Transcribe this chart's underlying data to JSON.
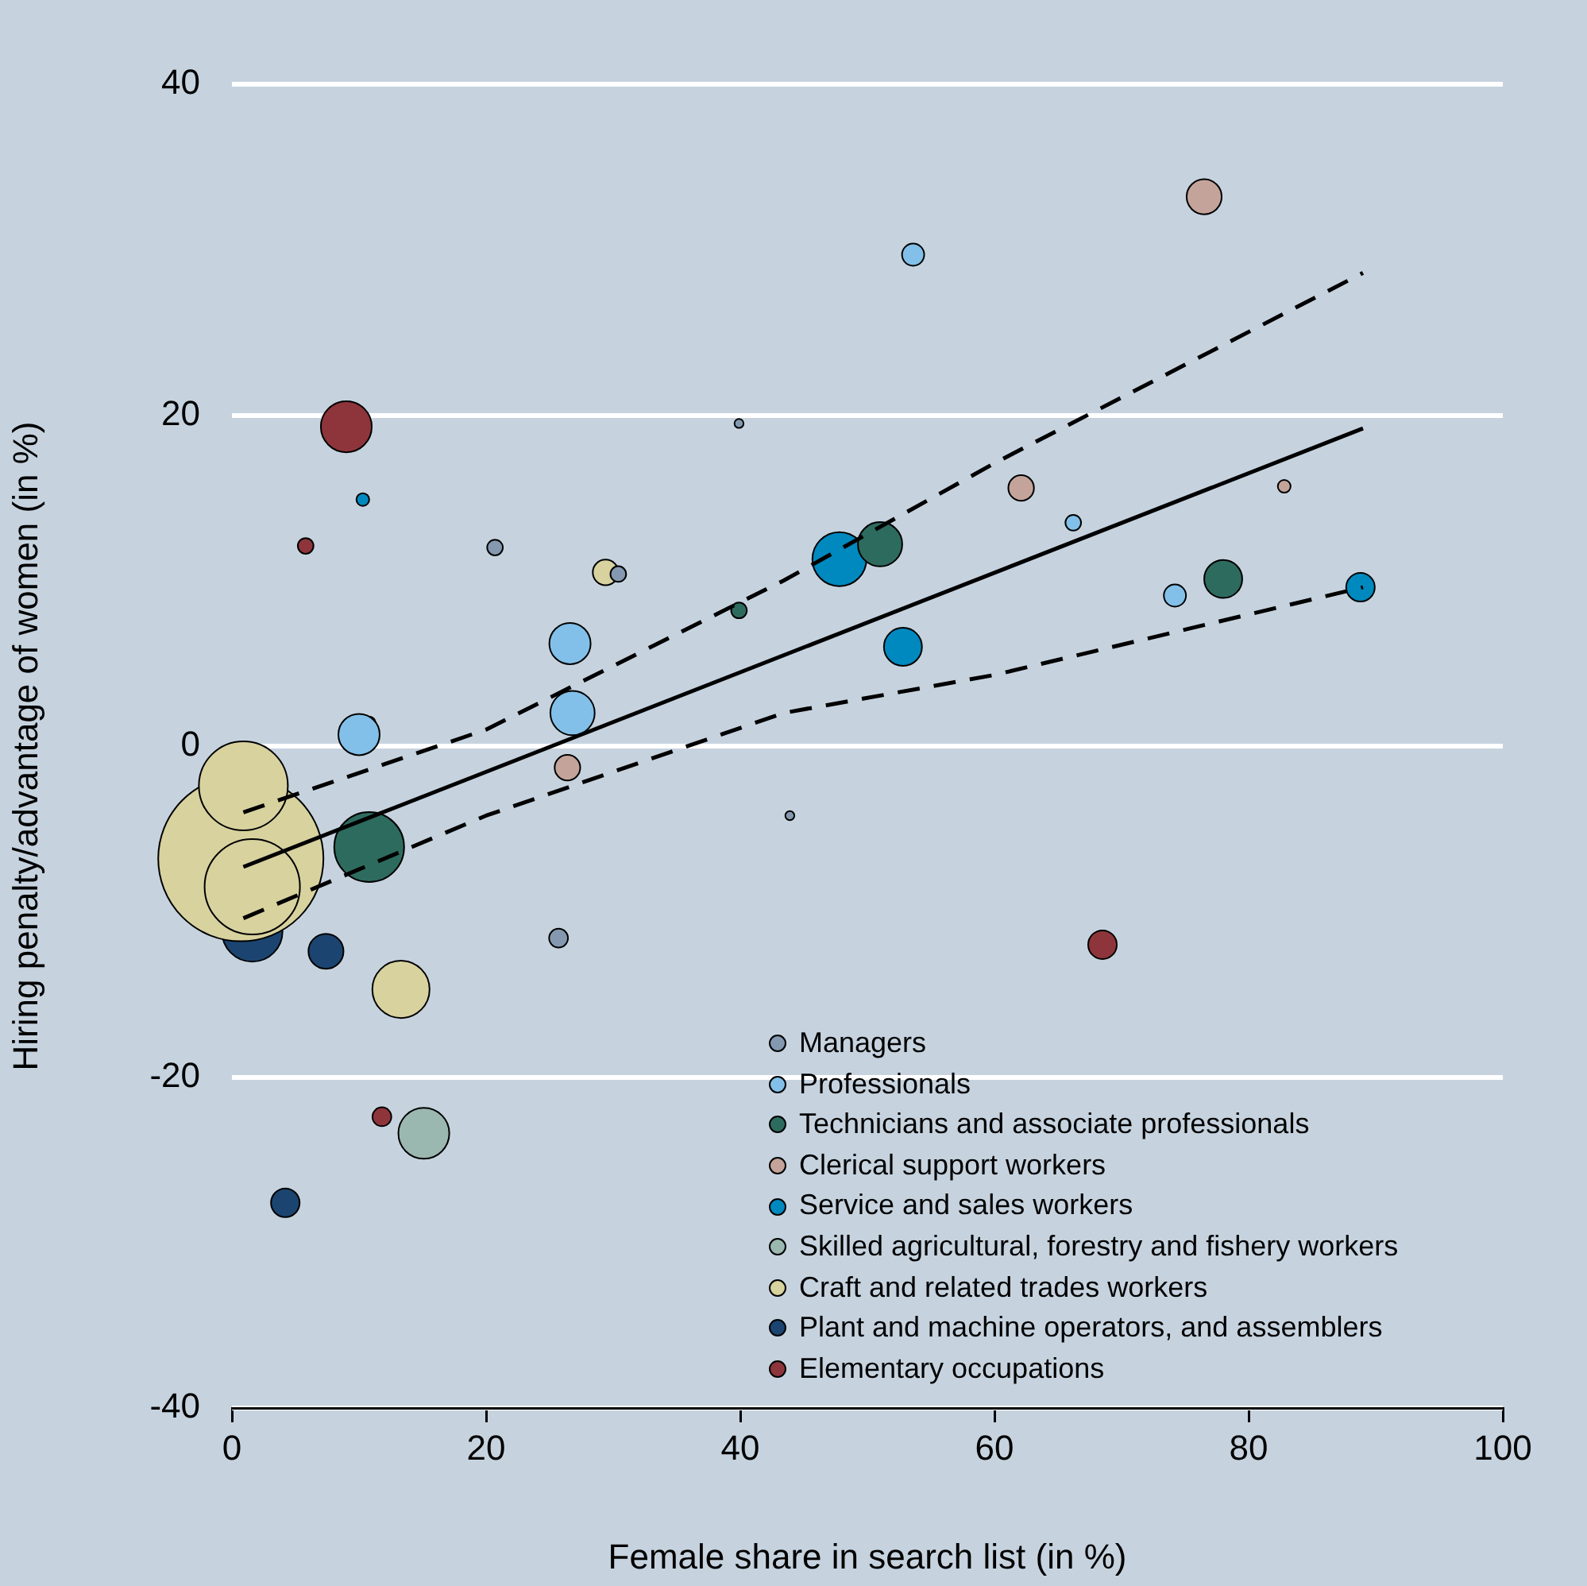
{
  "chart_data": {
    "type": "bubble",
    "xlabel": "Female share in search list (in %)",
    "ylabel": "Hiring penalty/advantage of women (in %)",
    "xlim": [
      0,
      100
    ],
    "xticks": [
      0,
      20,
      40,
      60,
      80,
      100
    ],
    "ylim": [
      -40,
      40
    ],
    "yticks": [
      -40,
      -20,
      0,
      20,
      40
    ],
    "grid": "y",
    "legend": "bottom right",
    "series": [
      {
        "name": "Managers",
        "color": "#8499b0",
        "x": [
          20.7,
          25.7,
          43.9,
          30.4,
          39.9
        ],
        "values": [
          12.0,
          -11.6,
          -4.2,
          10.4,
          19.5
        ],
        "sizes": [
          0.009,
          0.013,
          0.003,
          0.009,
          0.003
        ]
      },
      {
        "name": "Professionals",
        "color": "#82c0e9",
        "x": [
          53.6,
          26.6,
          26.8,
          10.0,
          66.2,
          74.2
        ],
        "values": [
          29.7,
          6.2,
          2.0,
          0.7,
          13.5,
          9.1
        ],
        "sizes": [
          0.018,
          0.0625,
          0.072,
          0.0625,
          0.009,
          0.018
        ]
      },
      {
        "name": "Technicians and associate professionals",
        "color": "#2e6b5f",
        "x": [
          51.0,
          78.0,
          10.8,
          39.9,
          10.8
        ],
        "values": [
          12.2,
          10.1,
          -6.1,
          8.2,
          1.4
        ],
        "sizes": [
          0.072,
          0.053,
          0.179,
          0.009,
          0.006
        ]
      },
      {
        "name": "Clerical support workers",
        "color": "#c4a49a",
        "x": [
          76.5,
          62.1,
          82.8,
          26.4
        ],
        "values": [
          33.2,
          15.6,
          15.7,
          -1.3
        ],
        "sizes": [
          0.045,
          0.024,
          0.006,
          0.024
        ]
      },
      {
        "name": "Service and sales workers",
        "color": "#0089bf",
        "x": [
          47.8,
          52.8,
          88.8,
          10.3
        ],
        "values": [
          11.3,
          6.0,
          9.6,
          14.9
        ],
        "sizes": [
          0.107,
          0.053,
          0.03,
          0.006
        ]
      },
      {
        "name": "Skilled agricultural, forestry and fishery workers",
        "color": "#9bb8b0",
        "x": [
          15.1
        ],
        "values": [
          -23.4
        ],
        "sizes": [
          0.095
        ]
      },
      {
        "name": "Craft and related trades workers",
        "color": "#d8d29f",
        "x": [
          0.7,
          0.9,
          1.6,
          13.3,
          29.4
        ],
        "values": [
          -6.8,
          -2.4,
          -8.5,
          -14.7,
          10.5
        ],
        "sizes": [
          1,
          0.29,
          0.333,
          0.12,
          0.024
        ]
      },
      {
        "name": "Plant and machine operators, and assemblers",
        "color": "#1b4570",
        "x": [
          1.6,
          7.4,
          4.2
        ],
        "values": [
          -11.2,
          -12.4,
          -27.6
        ],
        "sizes": [
          0.134,
          0.045,
          0.03
        ]
      },
      {
        "name": "Elementary occupations",
        "color": "#8e353c",
        "x": [
          9.0,
          5.8,
          11.8,
          68.5
        ],
        "values": [
          19.3,
          12.1,
          -22.4,
          -12.0
        ],
        "sizes": [
          0.095,
          0.009,
          0.013,
          0.03
        ]
      },
      {
        "type": "line",
        "color": "#000000",
        "line_style": "solid",
        "marker": "none",
        "x": [
          0.9,
          89
        ],
        "values": [
          -7.3,
          19.2
        ]
      },
      {
        "type": "line",
        "color": "#000000",
        "line_style": "dashed",
        "marker": "none",
        "x": [
          0.9,
          20,
          43.4,
          60,
          89
        ],
        "values": [
          -4.0,
          1.0,
          10.0,
          17.1,
          28.6
        ]
      },
      {
        "type": "line",
        "color": "#000000",
        "line_style": "dashed",
        "marker": "none",
        "x": [
          0.9,
          20,
          43.4,
          60,
          89
        ],
        "values": [
          -10.4,
          -4.2,
          2.0,
          4.3,
          9.6
        ]
      }
    ]
  }
}
